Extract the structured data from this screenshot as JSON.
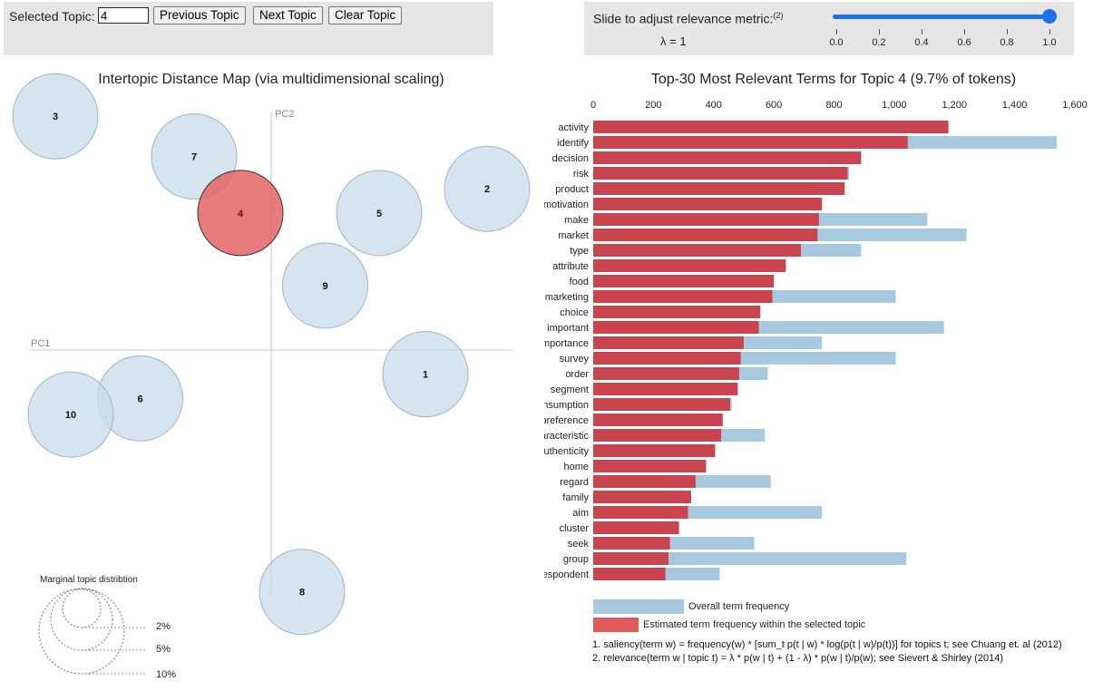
{
  "controls": {
    "selected_topic_label": "Selected Topic:",
    "selected_topic_value": "4",
    "previous_label": "Previous Topic",
    "next_label": "Next Topic",
    "clear_label": "Clear Topic",
    "slider_label": "Slide to adjust relevance metric:",
    "slider_note": "(2)",
    "lambda_text": "λ = 1",
    "lambda_value": 1.0,
    "slider_ticks": [
      "0.0",
      "0.2",
      "0.4",
      "0.6",
      "0.8",
      "1.0"
    ]
  },
  "map": {
    "title": "Intertopic Distance Map (via multidimensional scaling)",
    "axis_pc1": "PC1",
    "axis_pc2": "PC2",
    "legend_title": "Marginal topic distribtion",
    "legend_labels": [
      "2%",
      "5%",
      "10%"
    ]
  },
  "colors": {
    "accent": "#1a73e8",
    "topic_fill": "#c8dbe9",
    "selected_fill": "#e46464",
    "bar_red": "#c9444f",
    "bar_blue": "#a7c9e0"
  },
  "chart_data": [
    {
      "type": "scatter",
      "title": "Intertopic Distance Map (via multidimensional scaling)",
      "xlabel": "PC1",
      "ylabel": "PC2",
      "selected_topic": 4,
      "topics": [
        {
          "id": 1,
          "pc1": 0.2,
          "pc2": -0.03
        },
        {
          "id": 2,
          "pc1": 0.28,
          "pc2": 0.2
        },
        {
          "id": 3,
          "pc1": -0.28,
          "pc2": 0.29
        },
        {
          "id": 4,
          "pc1": -0.04,
          "pc2": 0.17
        },
        {
          "id": 5,
          "pc1": 0.14,
          "pc2": 0.17
        },
        {
          "id": 6,
          "pc1": -0.17,
          "pc2": -0.06
        },
        {
          "id": 7,
          "pc1": -0.1,
          "pc2": 0.24
        },
        {
          "id": 8,
          "pc1": 0.04,
          "pc2": -0.3
        },
        {
          "id": 9,
          "pc1": 0.07,
          "pc2": 0.08
        },
        {
          "id": 10,
          "pc1": -0.26,
          "pc2": -0.08
        }
      ]
    },
    {
      "type": "bar",
      "title": "Top-30 Most Relevant Terms for Topic 4 (9.7% of tokens)",
      "xlim": [
        0,
        1600
      ],
      "xticks": [
        "0",
        "200",
        "400",
        "600",
        "800",
        "1,000",
        "1,200",
        "1,400",
        "1,600"
      ],
      "tick_values": [
        0,
        200,
        400,
        600,
        800,
        1000,
        1200,
        1400,
        1600
      ],
      "categories": [
        "activity",
        "identify",
        "decision",
        "risk",
        "product",
        "motivation",
        "make",
        "market",
        "type",
        "attribute",
        "food",
        "marketing",
        "choice",
        "important",
        "importance",
        "survey",
        "order",
        "segment",
        "consumption",
        "preference",
        "characteristic",
        "authenticity",
        "home",
        "regard",
        "family",
        "aim",
        "cluster",
        "seek",
        "group",
        "respondent"
      ],
      "series": [
        {
          "name": "Overall term frequency",
          "values": [
            1180,
            1540,
            890,
            850,
            835,
            760,
            1110,
            1240,
            890,
            640,
            600,
            1005,
            555,
            1165,
            760,
            1005,
            580,
            480,
            460,
            430,
            570,
            405,
            375,
            590,
            325,
            760,
            285,
            535,
            1040,
            420
          ]
        },
        {
          "name": "Estimated term frequency within the selected topic",
          "values": [
            1180,
            1045,
            890,
            845,
            835,
            760,
            750,
            745,
            690,
            640,
            600,
            595,
            555,
            550,
            500,
            490,
            485,
            480,
            455,
            430,
            425,
            405,
            375,
            340,
            325,
            315,
            285,
            255,
            250,
            240
          ]
        }
      ],
      "legend": [
        "Overall term frequency",
        "Estimated term frequency within the selected topic"
      ]
    }
  ],
  "footnotes": [
    "1. saliency(term w) = frequency(w) * [sum_t p(t | w) * log(p(t | w)/p(t))] for topics t; see Chuang et. al (2012)",
    "2. relevance(term w | topic t) = λ * p(w | t) + (1 - λ) * p(w | t)/p(w); see Sievert & Shirley (2014)"
  ]
}
